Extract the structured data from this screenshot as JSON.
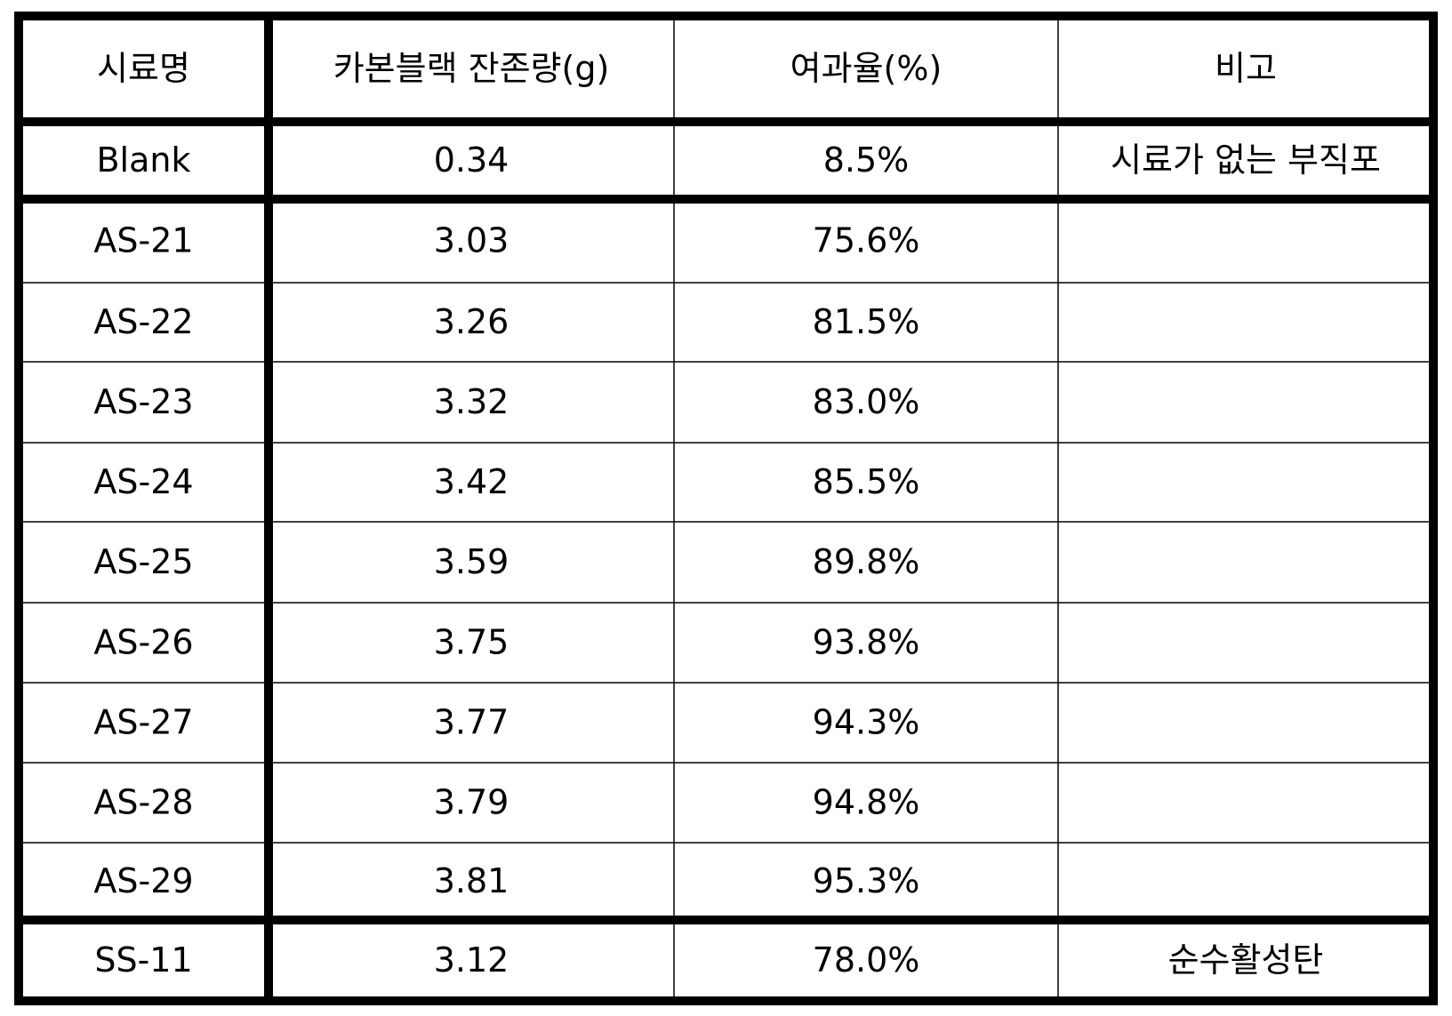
{
  "table": {
    "header": [
      "시료명",
      "카본블랙 잔존량(g)",
      "여과율(%)",
      "비고"
    ],
    "rows": [
      [
        "Blank",
        "0.34",
        "8.5%",
        "시료가 없는 부직포"
      ],
      [
        "AS-21",
        "3.03",
        "75.6%"
      ],
      [
        "AS-22",
        "3.26",
        "81.5%"
      ],
      [
        "AS-23",
        "3.32",
        "83.0%"
      ],
      [
        "AS-24",
        "3.42",
        "85.5%"
      ],
      [
        "AS-25",
        "3.59",
        "89.8%"
      ],
      [
        "AS-26",
        "3.75",
        "93.8%"
      ],
      [
        "AS-27",
        "3.77",
        "94.3%"
      ],
      [
        "AS-28",
        "3.79",
        "94.8%"
      ],
      [
        "AS-29",
        "3.81",
        "95.3%"
      ],
      [
        "SS-11",
        "3.12",
        "78.0%",
        "순수활성탄"
      ]
    ]
  }
}
